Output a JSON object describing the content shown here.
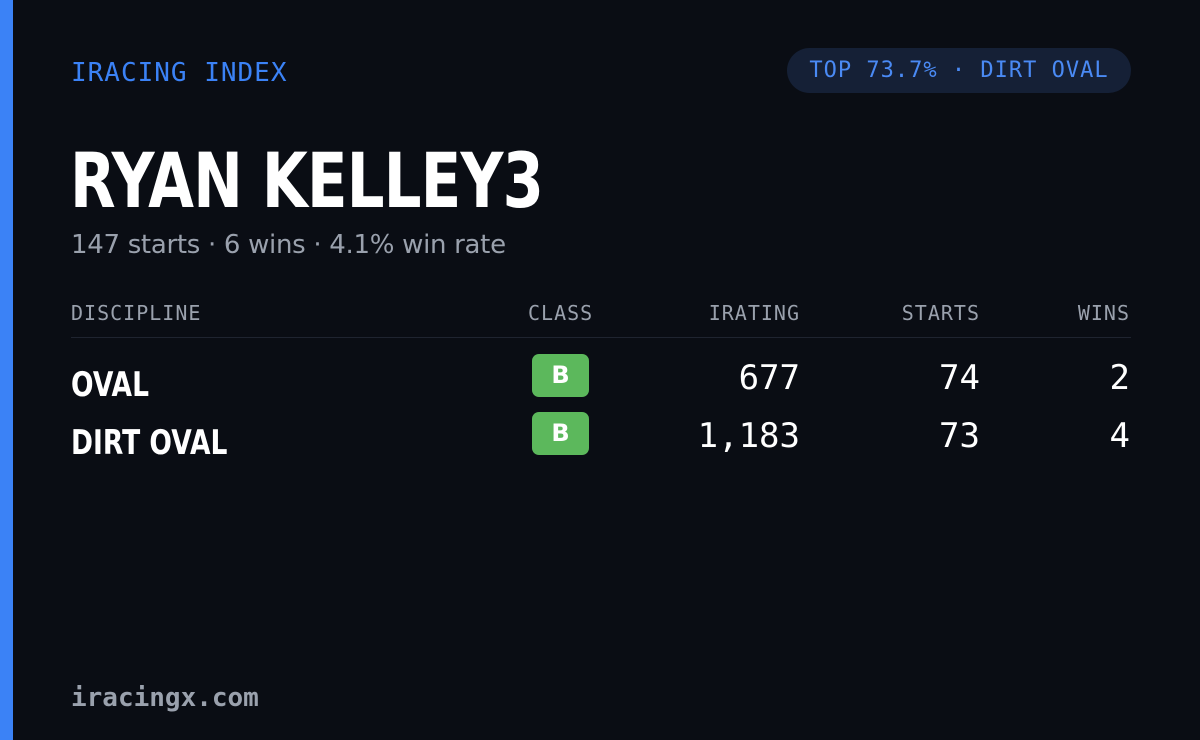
{
  "card": {
    "brand": "IRACING INDEX",
    "rank_badge": "TOP 73.7% · DIRT OVAL",
    "driver_name": "RYAN KELLEY3",
    "summary": "147 starts · 6 wins · 4.1% win rate",
    "site": "iracingx.com",
    "accent_color": "#3b82f6",
    "class_badge_color": "#5cb85c"
  },
  "table": {
    "headers": {
      "discipline": "DISCIPLINE",
      "class": "CLASS",
      "irating": "IRATING",
      "starts": "STARTS",
      "wins": "WINS"
    },
    "rows": [
      {
        "discipline": "OVAL",
        "class": "B",
        "irating": "677",
        "starts": "74",
        "wins": "2"
      },
      {
        "discipline": "DIRT OVAL",
        "class": "B",
        "irating": "1,183",
        "starts": "73",
        "wins": "4"
      }
    ]
  }
}
